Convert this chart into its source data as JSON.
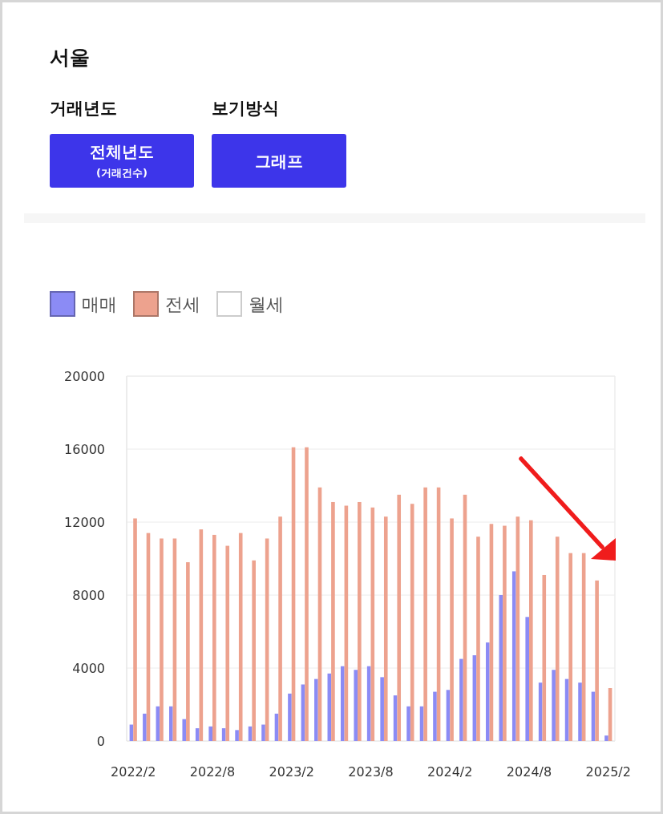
{
  "chart_data": {
    "type": "bar",
    "title": "서울",
    "annotations": [
      "거래년도",
      "전체년도",
      "(거래건수)",
      "보기방식",
      "그래프"
    ],
    "categories": [
      "2022/2",
      null,
      null,
      null,
      null,
      null,
      "2022/8",
      null,
      null,
      null,
      null,
      null,
      "2023/2",
      null,
      null,
      null,
      null,
      null,
      "2023/8",
      null,
      null,
      null,
      null,
      null,
      "2024/2",
      null,
      null,
      null,
      null,
      null,
      "2024/8",
      null,
      null,
      null,
      null,
      null,
      "2025/2"
    ],
    "series": [
      {
        "name": "매매",
        "color": "#8b8bf5",
        "values": [
          900,
          1500,
          1900,
          1900,
          1200,
          700,
          800,
          700,
          600,
          800,
          900,
          1500,
          2600,
          3100,
          3400,
          3700,
          4100,
          3900,
          4100,
          3500,
          2500,
          1900,
          1900,
          2700,
          2800,
          4500,
          4700,
          5400,
          8000,
          9300,
          6800,
          3200,
          3900,
          3400,
          3200,
          2700,
          300
        ]
      },
      {
        "name": "전세",
        "color": "#eda28e",
        "values": [
          12200,
          11400,
          11100,
          11100,
          9800,
          11600,
          11300,
          10700,
          11400,
          9900,
          11100,
          12300,
          16100,
          16100,
          13900,
          13100,
          12900,
          13100,
          12800,
          12300,
          13500,
          13000,
          13900,
          13900,
          12200,
          13500,
          11200,
          11900,
          11800,
          12300,
          12100,
          9100,
          11200,
          10300,
          10300,
          8800,
          2900
        ]
      },
      {
        "name": "월세",
        "color": "#ffffff",
        "values": [
          null,
          null,
          null,
          null,
          null,
          null,
          null,
          null,
          null,
          null,
          null,
          null,
          null,
          null,
          null,
          null,
          null,
          null,
          null,
          null,
          null,
          null,
          null,
          null,
          null,
          null,
          null,
          null,
          null,
          null,
          null,
          null,
          null,
          null,
          null,
          null,
          null
        ]
      }
    ],
    "ylim": [
      0,
      20000
    ],
    "yticks": [
      0,
      4000,
      8000,
      12000,
      16000,
      20000
    ],
    "grid": "y",
    "legend": "top left"
  }
}
